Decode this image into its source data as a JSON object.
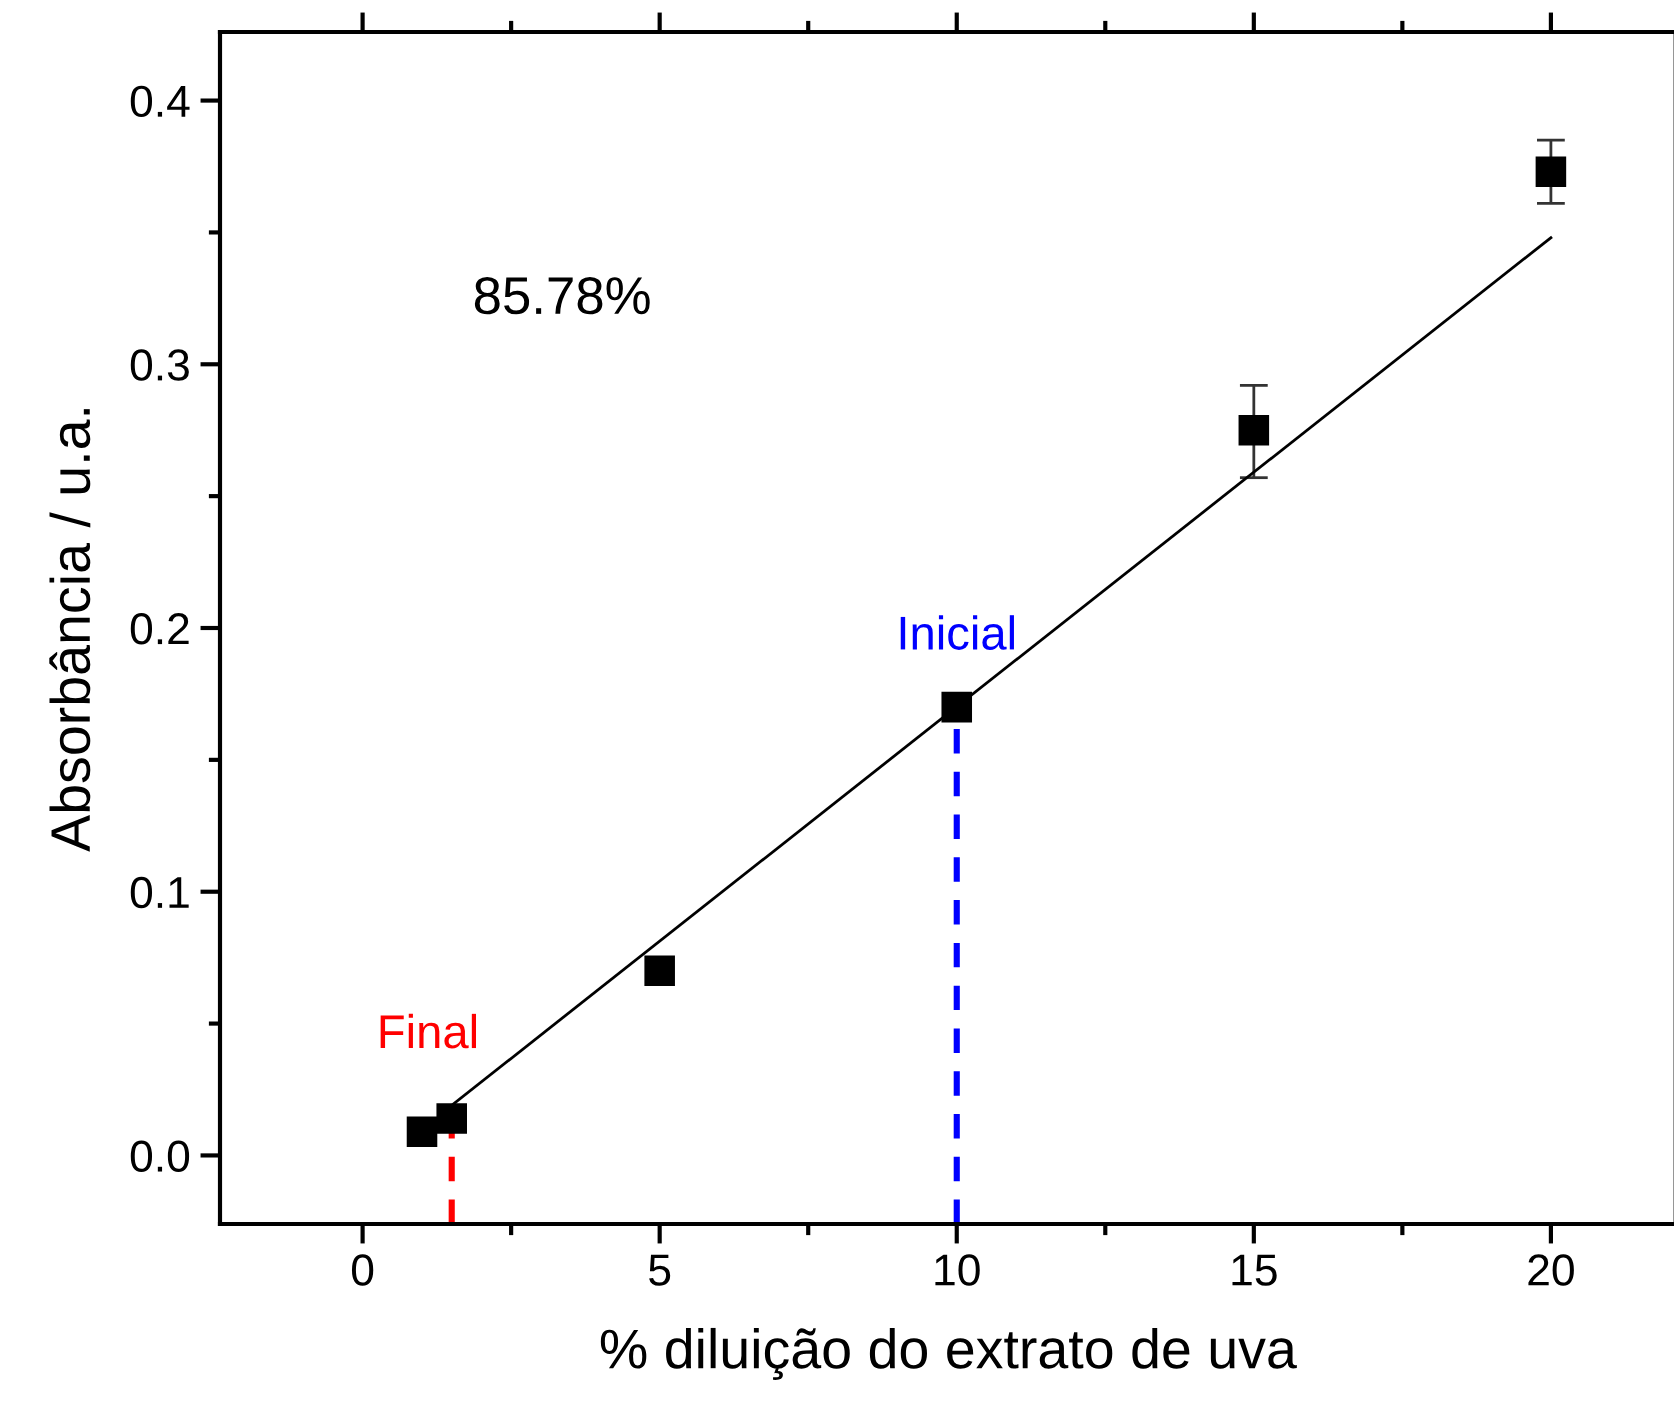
{
  "chart_data": {
    "type": "scatter",
    "xlabel": "% diluição do extrato de uva",
    "ylabel": "Absorbância / u.a.",
    "series": [
      {
        "color": "#000000",
        "x": [
          1,
          1.5,
          5,
          10,
          15,
          20
        ],
        "values": [
          0.009,
          0.014,
          0.07,
          0.17,
          0.275,
          0.373
        ],
        "errors": [
          null,
          null,
          null,
          null,
          [
            0.257,
            0.292
          ],
          [
            0.361,
            0.385
          ]
        ],
        "marker": "square"
      },
      {
        "type": "line",
        "color": "#000000",
        "x": [
          1.5,
          20
        ],
        "values": [
          0.019,
          0.348
        ],
        "marker": "none",
        "line_style": "solid"
      }
    ],
    "ref_lines": [
      {
        "axis": "x",
        "value": 1.5,
        "label": "Final",
        "color": "#ff0000",
        "line_style": "dashed"
      },
      {
        "axis": "x",
        "value": 10,
        "label": "Inicial",
        "color": "#0000ff",
        "line_style": "dashed"
      }
    ],
    "annotations": [
      "85.78%"
    ],
    "xlim": [
      -2.4,
      22.1
    ],
    "xticks": [
      0,
      5,
      10,
      15,
      20
    ],
    "ylim": [
      -0.026,
      0.426
    ],
    "yticks": [
      {
        "value": 0,
        "label": "0.0"
      },
      0.1,
      0.2,
      0.3,
      0.4
    ],
    "grid": false,
    "legend": false
  }
}
